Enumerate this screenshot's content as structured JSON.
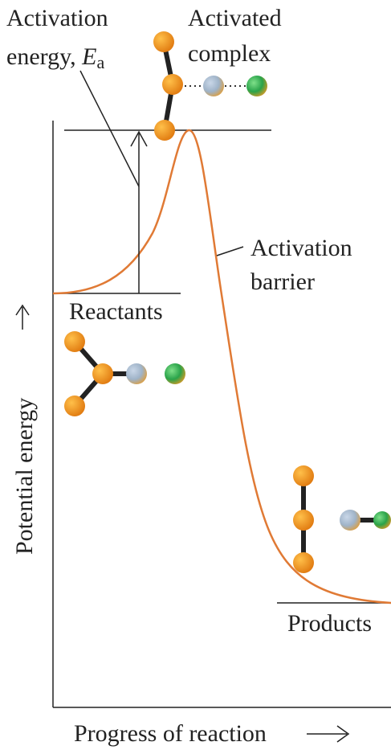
{
  "activation_energy": {
    "line1": "Activation",
    "line2": "energy,",
    "symbol": "E",
    "subscript": "a"
  },
  "activated_complex": {
    "line1": "Activated",
    "line2": "complex"
  },
  "activation_barrier": {
    "line1": "Activation",
    "line2": "barrier"
  },
  "reactants": "Reactants",
  "products": "Products",
  "y_axis_label": "Potential energy",
  "x_axis_label": "Progress of reaction"
}
